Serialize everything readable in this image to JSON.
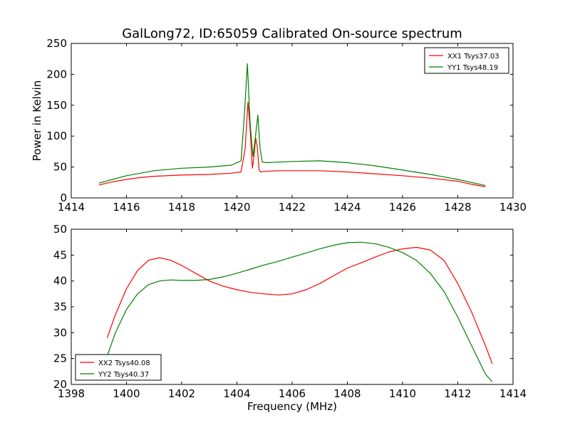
{
  "chart_data": [
    {
      "type": "line",
      "title": "GalLong72, ID:65059 Calibrated On-source spectrum",
      "xlabel": "",
      "ylabel": "Power in Kelvin",
      "xlim": [
        1414,
        1430
      ],
      "ylim": [
        0,
        250
      ],
      "xticks": [
        1414,
        1416,
        1418,
        1420,
        1422,
        1424,
        1426,
        1428,
        1430
      ],
      "yticks": [
        0,
        50,
        100,
        150,
        200,
        250
      ],
      "legend_position": "top-right",
      "grid": false,
      "series": [
        {
          "name": "XX1 Tsys37.03",
          "color": "#ff0000",
          "x": [
            1415.0,
            1415.5,
            1416.0,
            1416.5,
            1417.0,
            1418.0,
            1419.0,
            1419.8,
            1420.15,
            1420.3,
            1420.4,
            1420.48,
            1420.56,
            1420.62,
            1420.68,
            1420.74,
            1420.8,
            1420.86,
            1421.0,
            1421.5,
            1422.0,
            1423.0,
            1424.0,
            1425.0,
            1426.0,
            1427.0,
            1428.0,
            1428.5,
            1429.0
          ],
          "y": [
            21,
            26,
            30,
            33,
            35,
            37,
            38,
            40,
            42,
            80,
            155,
            110,
            48,
            68,
            97,
            82,
            46,
            42,
            43,
            44,
            44,
            44,
            42,
            39,
            36,
            32,
            27,
            22,
            18
          ]
        },
        {
          "name": "YY1 Tsys48.19",
          "color": "#008000",
          "x": [
            1415.0,
            1415.5,
            1416.0,
            1416.5,
            1417.0,
            1418.0,
            1419.0,
            1419.8,
            1420.15,
            1420.28,
            1420.38,
            1420.48,
            1420.58,
            1420.66,
            1420.76,
            1420.84,
            1420.92,
            1421.1,
            1421.5,
            1422.0,
            1423.0,
            1424.0,
            1425.0,
            1426.0,
            1427.0,
            1428.0,
            1428.5,
            1429.0
          ],
          "y": [
            24,
            30,
            36,
            40,
            44,
            48,
            50,
            53,
            60,
            140,
            217,
            120,
            67,
            95,
            134,
            80,
            58,
            57,
            58,
            59,
            60,
            57,
            52,
            45,
            38,
            30,
            25,
            20
          ]
        }
      ]
    },
    {
      "type": "line",
      "title": "",
      "xlabel": "Frequency (MHz)",
      "ylabel": "",
      "xlim": [
        1398,
        1414
      ],
      "ylim": [
        20,
        50
      ],
      "xticks": [
        1398,
        1400,
        1402,
        1404,
        1406,
        1408,
        1410,
        1412,
        1414
      ],
      "yticks": [
        20,
        25,
        30,
        35,
        40,
        45,
        50
      ],
      "legend_position": "bottom-left",
      "grid": false,
      "series": [
        {
          "name": "XX2 Tsys40.08",
          "color": "#ff0000",
          "x": [
            1399.3,
            1399.6,
            1400.0,
            1400.4,
            1400.8,
            1401.2,
            1401.6,
            1402.0,
            1402.5,
            1403.0,
            1403.5,
            1404.0,
            1404.5,
            1405.0,
            1405.5,
            1406.0,
            1406.5,
            1407.0,
            1407.5,
            1408.0,
            1408.5,
            1409.0,
            1409.5,
            1410.0,
            1410.5,
            1411.0,
            1411.5,
            1412.0,
            1412.5,
            1413.0,
            1413.25
          ],
          "y": [
            29,
            33.5,
            38.5,
            42,
            44,
            44.5,
            44,
            43,
            41.5,
            40,
            39,
            38.3,
            37.8,
            37.5,
            37.3,
            37.5,
            38.3,
            39.5,
            41,
            42.5,
            43.5,
            44.6,
            45.6,
            46.2,
            46.5,
            46,
            44,
            39.5,
            34,
            27.5,
            24
          ]
        },
        {
          "name": "YY2 Tsys40.37",
          "color": "#008000",
          "x": [
            1399.3,
            1399.6,
            1400.0,
            1400.4,
            1400.8,
            1401.2,
            1401.6,
            1402.0,
            1402.5,
            1403.0,
            1403.5,
            1404.0,
            1404.5,
            1405.0,
            1405.5,
            1406.0,
            1406.5,
            1407.0,
            1407.5,
            1408.0,
            1408.5,
            1409.0,
            1409.5,
            1410.0,
            1410.5,
            1411.0,
            1411.5,
            1412.0,
            1412.5,
            1413.0,
            1413.25
          ],
          "y": [
            25.5,
            30,
            34.5,
            37.5,
            39.3,
            40,
            40.2,
            40.1,
            40.1,
            40.3,
            40.8,
            41.5,
            42.3,
            43.1,
            43.8,
            44.6,
            45.4,
            46.2,
            46.9,
            47.4,
            47.5,
            47.2,
            46.5,
            45.5,
            44,
            41.5,
            38,
            33,
            27.5,
            22,
            20.5
          ]
        }
      ]
    }
  ]
}
